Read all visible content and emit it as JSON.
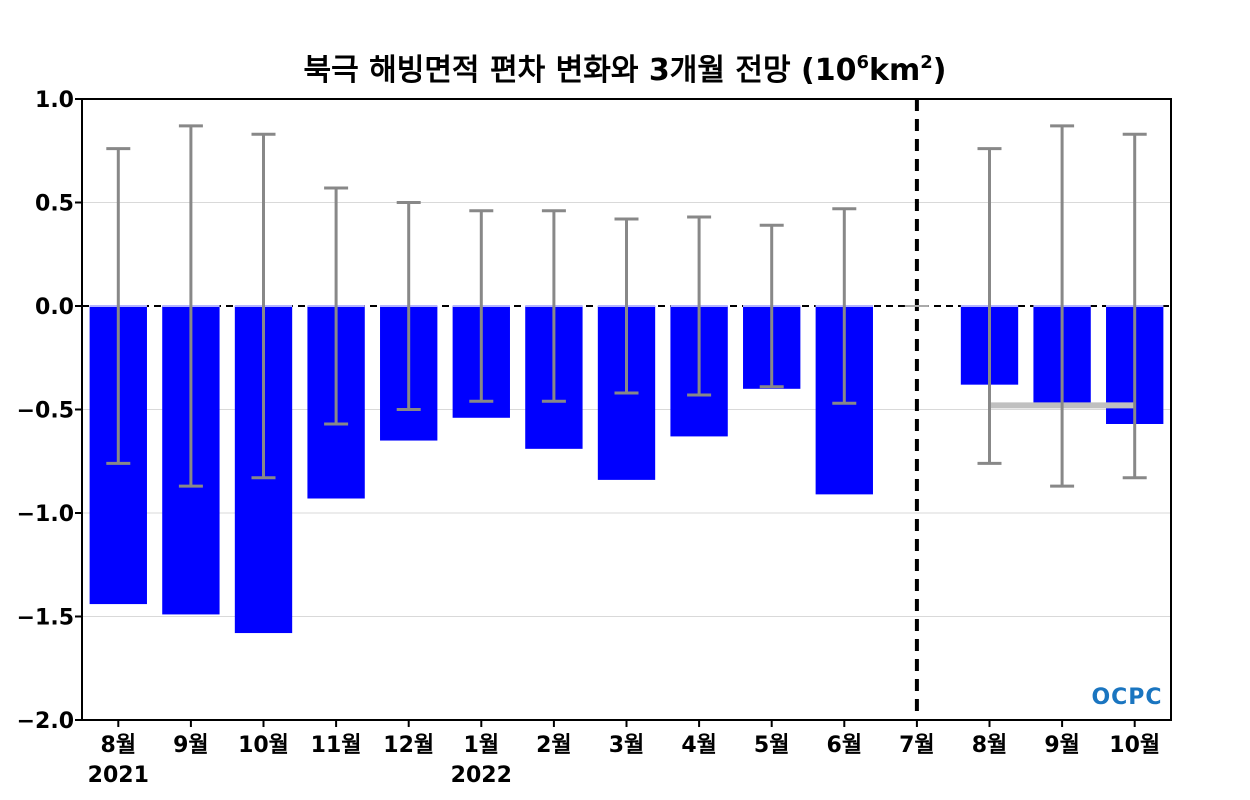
{
  "chart_data": {
    "type": "bar",
    "title": "북극 해빙면적 편차 변화와 3개월 전망",
    "title_unit": {
      "open": "(10",
      "exp": "6",
      "mid": "km",
      "exp2": "2",
      "close": ")"
    },
    "categories": [
      "8월",
      "9월",
      "10월",
      "11월",
      "12월",
      "1월",
      "2월",
      "3월",
      "4월",
      "5월",
      "6월",
      "7월",
      "8월",
      "9월",
      "10월"
    ],
    "year_labels": [
      {
        "index": 0,
        "label": "2021"
      },
      {
        "index": 5,
        "label": "2022"
      }
    ],
    "series": [
      {
        "values": [
          -1.44,
          -1.49,
          -1.58,
          -0.93,
          -0.65,
          -0.54,
          -0.69,
          -0.84,
          -0.63,
          -0.4,
          -0.91,
          0.0,
          -0.38,
          -0.47,
          -0.57
        ],
        "error": [
          0.76,
          0.87,
          0.83,
          0.57,
          0.5,
          0.46,
          0.46,
          0.42,
          0.43,
          0.39,
          0.47,
          0.0,
          0.76,
          0.87,
          0.83
        ],
        "color": "#0000ff"
      }
    ],
    "reference_line": {
      "from_index": 12,
      "to_index": 14,
      "value": -0.48,
      "color": "#c0c0c0"
    },
    "divider_index": 11,
    "ylim": [
      -2.0,
      1.0
    ],
    "yticks": [
      1.0,
      0.5,
      0.0,
      -0.5,
      -1.0,
      -1.5,
      -2.0
    ],
    "ytick_labels": [
      "1.0",
      "0.5",
      "0.0",
      "−0.5",
      "−1.0",
      "−1.5",
      "−2.0"
    ],
    "grid": true,
    "xlabel": "",
    "ylabel": ""
  },
  "logo": {
    "text": "OCPC",
    "color": "#1a75c0"
  },
  "colors": {
    "bar": "#0000ff",
    "error_bar": "#888888",
    "grid": "#d9d9d9",
    "divider": "#000000"
  }
}
